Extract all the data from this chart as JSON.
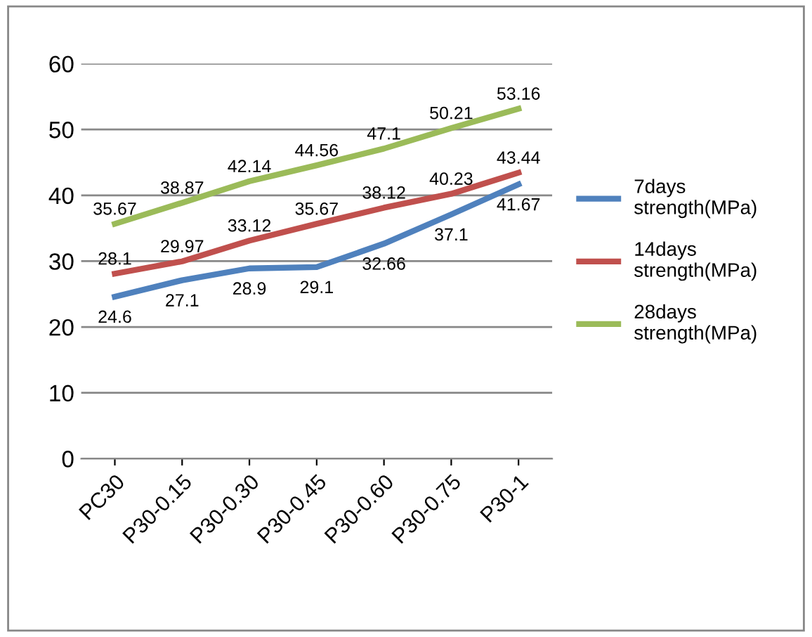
{
  "chart_data": {
    "type": "line",
    "categories": [
      "PC30",
      "P30-0.15",
      "P30-0.30",
      "P30-0.45",
      "P30-0.60",
      "P30-0.75",
      "P30-1"
    ],
    "series": [
      {
        "name": "7days strength(MPa)",
        "color": "#4f81bd",
        "values": [
          24.6,
          27.1,
          28.9,
          29.1,
          32.66,
          37.1,
          41.67
        ]
      },
      {
        "name": "14days strength(MPa)",
        "color": "#c0504d",
        "values": [
          28.1,
          29.97,
          33.12,
          35.67,
          38.12,
          40.23,
          43.44
        ]
      },
      {
        "name": "28days strength(MPa)",
        "color": "#9bbb59",
        "values": [
          35.67,
          38.87,
          42.14,
          44.56,
          47.1,
          50.21,
          53.16
        ]
      }
    ],
    "ylim": [
      0,
      60
    ],
    "yticks": [
      0,
      10,
      20,
      30,
      40,
      50,
      60
    ],
    "grid": "y",
    "legend": "right",
    "data_labels": true,
    "marker": "none",
    "line_style": "solid"
  }
}
